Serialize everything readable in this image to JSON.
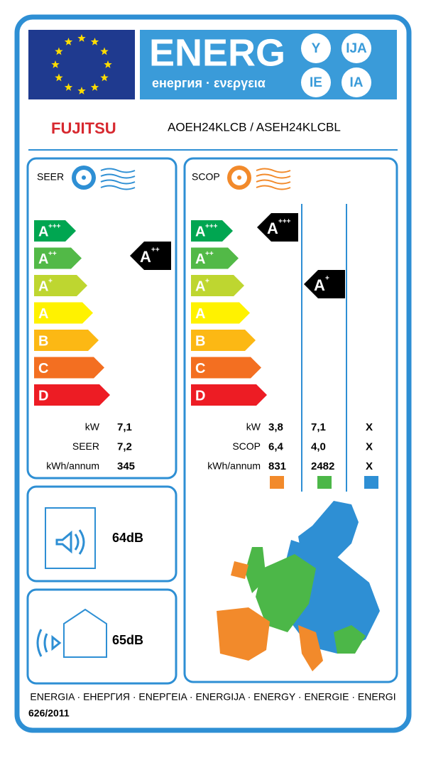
{
  "header": {
    "energ": "ENERG",
    "subtitle": "енергия · ενεργεια",
    "badges": [
      "Y",
      "IJA",
      "IE",
      "IA"
    ]
  },
  "brand": "FUJITSU",
  "model": "AOEH24KLCB / ASEH24KLCBL",
  "classes": [
    {
      "letter": "A",
      "sup": "+++"
    },
    {
      "letter": "A",
      "sup": "++"
    },
    {
      "letter": "A",
      "sup": "+"
    },
    {
      "letter": "A"
    },
    {
      "letter": "B"
    },
    {
      "letter": "C"
    },
    {
      "letter": "D"
    }
  ],
  "seer": {
    "label": "SEER",
    "rating": {
      "letter": "A",
      "sup": "++"
    },
    "rows": [
      [
        "kW",
        "7,1"
      ],
      [
        "SEER",
        "7,2"
      ],
      [
        "kWh/annum",
        "345"
      ]
    ]
  },
  "scop": {
    "label": "SCOP",
    "ratings": [
      {
        "letter": "A",
        "sup": "+++"
      },
      {
        "letter": "A",
        "sup": "+"
      }
    ],
    "rows": [
      [
        "kW",
        "3,8",
        "7,1",
        "X"
      ],
      [
        "SCOP",
        "6,4",
        "4,0",
        "X"
      ],
      [
        "kWh/annum",
        "831",
        "2482",
        "X"
      ]
    ]
  },
  "noise": {
    "indoor": "64dB",
    "outdoor": "65dB"
  },
  "footer": {
    "languages": "ENERGIA · ЕНЕРГИЯ · ΕΝΕΡΓΕΙΑ · ENERGIJA · ENERGY · ENERGIE · ENERGI",
    "regulation": "626/2011"
  }
}
